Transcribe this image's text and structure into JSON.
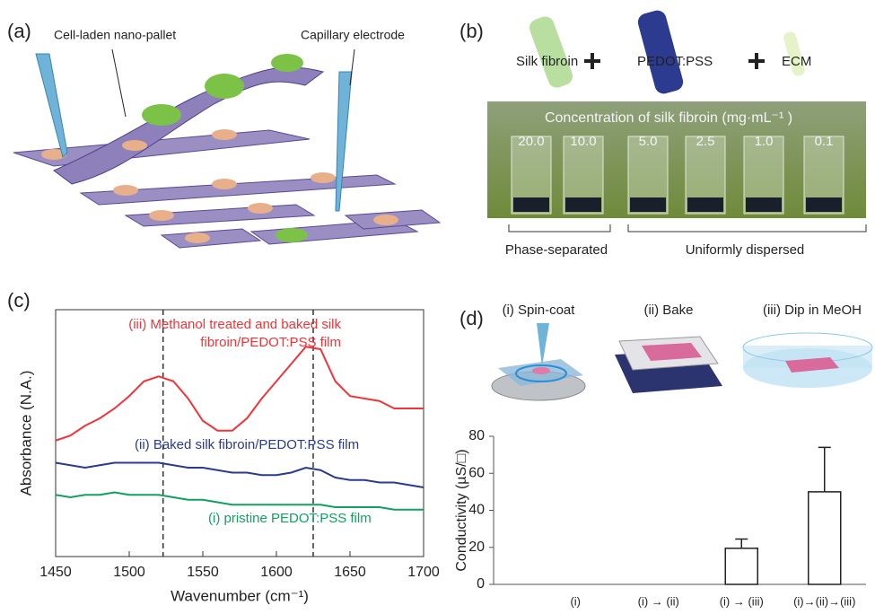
{
  "panels": {
    "a": {
      "label": "(a)",
      "callouts": [
        "Cell-laden nano-pallet",
        "Capillary electrode"
      ]
    },
    "b": {
      "label": "(b)",
      "components": [
        "Silk fibroin",
        "PEDOT:PSS",
        "ECM"
      ],
      "photo_title": "Concentration of silk fibroin (mg·mL⁻¹ )",
      "concentrations": [
        "20.0",
        "10.0",
        "5.0",
        "2.5",
        "1.0",
        "0.1"
      ],
      "groups": [
        "Phase-separated",
        "Uniformly dispersed"
      ]
    },
    "c": {
      "label": "(c)"
    },
    "d": {
      "label": "(d)",
      "steps": [
        "(i) Spin-coat",
        "(ii) Bake",
        "(iii) Dip in MeOH"
      ]
    }
  },
  "chart_data": [
    {
      "type": "line",
      "xlabel": "Wavenumber (cm⁻¹)",
      "ylabel": "Absorbance (N.A.)",
      "x": [
        1450,
        1460,
        1470,
        1480,
        1490,
        1500,
        1510,
        1520,
        1530,
        1540,
        1550,
        1560,
        1570,
        1580,
        1590,
        1600,
        1610,
        1620,
        1630,
        1640,
        1650,
        1660,
        1670,
        1680,
        1690,
        1700
      ],
      "xlim": [
        1450,
        1700
      ],
      "xticks": [
        1450,
        1500,
        1550,
        1600,
        1650,
        1700
      ],
      "ylim": [
        0,
        10
      ],
      "vlines": [
        1523,
        1625
      ],
      "series": [
        {
          "name": "(iii) Methanol treated and baked silk fibroin/PEDOT:PSS film",
          "color": "#f0353a",
          "values": [
            4.7,
            4.9,
            5.3,
            5.6,
            6.0,
            6.5,
            7.1,
            7.3,
            7.1,
            6.4,
            5.5,
            5.1,
            5.1,
            5.6,
            6.4,
            7.1,
            7.8,
            8.5,
            8.4,
            7.1,
            6.5,
            6.4,
            6.3,
            6.0,
            6.0,
            6.0
          ]
        },
        {
          "name": "(ii) Baked silk fibroin/PEDOT:PSS film",
          "color": "#2c3a8c",
          "values": [
            3.8,
            3.7,
            3.6,
            3.7,
            3.8,
            3.8,
            3.8,
            3.8,
            3.7,
            3.6,
            3.6,
            3.5,
            3.4,
            3.4,
            3.3,
            3.3,
            3.4,
            3.6,
            3.5,
            3.2,
            3.1,
            3.1,
            3.0,
            3.0,
            2.9,
            2.8
          ]
        },
        {
          "name": "(i) pristine PEDOT:PSS film",
          "color": "#12a060",
          "values": [
            2.5,
            2.4,
            2.5,
            2.5,
            2.6,
            2.5,
            2.5,
            2.5,
            2.4,
            2.3,
            2.3,
            2.2,
            2.1,
            2.1,
            2.1,
            2.1,
            2.1,
            2.1,
            2.1,
            2.0,
            2.0,
            2.0,
            2.0,
            1.9,
            1.9,
            1.9
          ]
        }
      ]
    },
    {
      "type": "bar",
      "ylabel": "Conductivity (µS/□)",
      "categories": [
        "(i)",
        "(i) → (ii)",
        "(i) → (iii)",
        "(i)→(ii)→(iii)"
      ],
      "values": [
        0,
        0,
        19.5,
        50
      ],
      "errors": [
        0,
        0,
        5,
        24
      ],
      "ylim": [
        0,
        80
      ],
      "yticks": [
        0,
        20,
        40,
        60,
        80
      ],
      "color": "#ffffff",
      "edgecolor": "#222222"
    }
  ]
}
